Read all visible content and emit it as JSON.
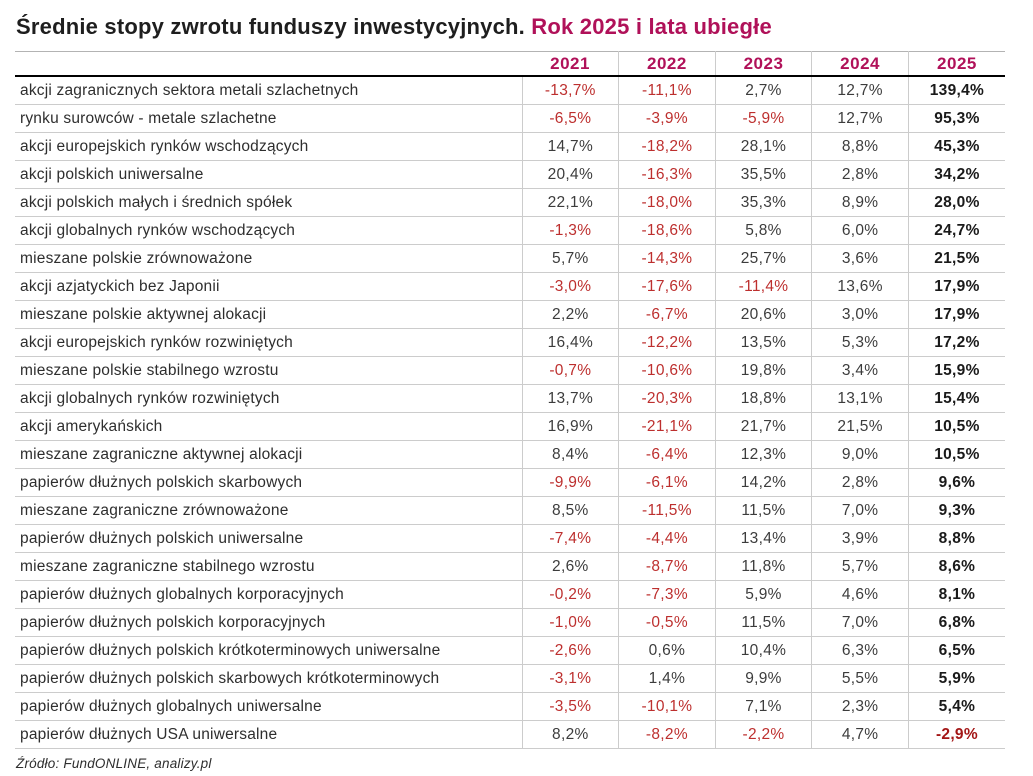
{
  "title": {
    "main": "Średnie stopy zwrotu funduszy inwestycyjnych.",
    "highlight": " Rok 2025 i lata ubiegłe"
  },
  "colors": {
    "accent_crimson": "#b01159",
    "negative_red": "#bd2f2e",
    "bold_negative_red": "#a31616",
    "text_dark": "#2e2e2e",
    "gridline_gray": "#cccccc"
  },
  "chart_data": {
    "type": "table",
    "title": "Średnie stopy zwrotu funduszy inwestycyjnych. Rok 2025 i lata ubiegłe",
    "columns": [
      "2021",
      "2022",
      "2023",
      "2024",
      "2025"
    ],
    "rows": [
      {
        "label": "akcji zagranicznych sektora metali szlachetnych",
        "values": [
          "-13,7%",
          "-11,1%",
          "2,7%",
          "12,7%",
          "139,4%"
        ]
      },
      {
        "label": "rynku surowców - metale szlachetne",
        "values": [
          "-6,5%",
          "-3,9%",
          "-5,9%",
          "12,7%",
          "95,3%"
        ]
      },
      {
        "label": "akcji europejskich rynków wschodzących",
        "values": [
          "14,7%",
          "-18,2%",
          "28,1%",
          "8,8%",
          "45,3%"
        ]
      },
      {
        "label": "akcji polskich uniwersalne",
        "values": [
          "20,4%",
          "-16,3%",
          "35,5%",
          "2,8%",
          "34,2%"
        ]
      },
      {
        "label": "akcji polskich małych i średnich spółek",
        "values": [
          "22,1%",
          "-18,0%",
          "35,3%",
          "8,9%",
          "28,0%"
        ]
      },
      {
        "label": "akcji globalnych rynków wschodzących",
        "values": [
          "-1,3%",
          "-18,6%",
          "5,8%",
          "6,0%",
          "24,7%"
        ]
      },
      {
        "label": "mieszane polskie zrównoważone",
        "values": [
          "5,7%",
          "-14,3%",
          "25,7%",
          "3,6%",
          "21,5%"
        ]
      },
      {
        "label": "akcji azjatyckich bez Japonii",
        "values": [
          "-3,0%",
          "-17,6%",
          "-11,4%",
          "13,6%",
          "17,9%"
        ]
      },
      {
        "label": "mieszane polskie aktywnej alokacji",
        "values": [
          "2,2%",
          "-6,7%",
          "20,6%",
          "3,0%",
          "17,9%"
        ]
      },
      {
        "label": "akcji europejskich rynków rozwiniętych",
        "values": [
          "16,4%",
          "-12,2%",
          "13,5%",
          "5,3%",
          "17,2%"
        ]
      },
      {
        "label": "mieszane polskie stabilnego wzrostu",
        "values": [
          "-0,7%",
          "-10,6%",
          "19,8%",
          "3,4%",
          "15,9%"
        ]
      },
      {
        "label": "akcji globalnych rynków rozwiniętych",
        "values": [
          "13,7%",
          "-20,3%",
          "18,8%",
          "13,1%",
          "15,4%"
        ]
      },
      {
        "label": "akcji amerykańskich",
        "values": [
          "16,9%",
          "-21,1%",
          "21,7%",
          "21,5%",
          "10,5%"
        ]
      },
      {
        "label": "mieszane zagraniczne aktywnej alokacji",
        "values": [
          "8,4%",
          "-6,4%",
          "12,3%",
          "9,0%",
          "10,5%"
        ]
      },
      {
        "label": "papierów dłużnych polskich skarbowych",
        "values": [
          "-9,9%",
          "-6,1%",
          "14,2%",
          "2,8%",
          "9,6%"
        ]
      },
      {
        "label": "mieszane zagraniczne zrównoważone",
        "values": [
          "8,5%",
          "-11,5%",
          "11,5%",
          "7,0%",
          "9,3%"
        ]
      },
      {
        "label": "papierów dłużnych polskich uniwersalne",
        "values": [
          "-7,4%",
          "-4,4%",
          "13,4%",
          "3,9%",
          "8,8%"
        ]
      },
      {
        "label": "mieszane zagraniczne stabilnego wzrostu",
        "values": [
          "2,6%",
          "-8,7%",
          "11,8%",
          "5,7%",
          "8,6%"
        ]
      },
      {
        "label": "papierów dłużnych globalnych korporacyjnych",
        "values": [
          "-0,2%",
          "-7,3%",
          "5,9%",
          "4,6%",
          "8,1%"
        ]
      },
      {
        "label": "papierów dłużnych polskich korporacyjnych",
        "values": [
          "-1,0%",
          "-0,5%",
          "11,5%",
          "7,0%",
          "6,8%"
        ]
      },
      {
        "label": "papierów dłużnych polskich krótkoterminowych uniwersalne",
        "values": [
          "-2,6%",
          "0,6%",
          "10,4%",
          "6,3%",
          "6,5%"
        ]
      },
      {
        "label": "papierów dłużnych polskich skarbowych krótkoterminowych",
        "values": [
          "-3,1%",
          "1,4%",
          "9,9%",
          "5,5%",
          "5,9%"
        ]
      },
      {
        "label": "papierów dłużnych globalnych uniwersalne",
        "values": [
          "-3,5%",
          "-10,1%",
          "7,1%",
          "2,3%",
          "5,4%"
        ]
      },
      {
        "label": "papierów dłużnych USA uniwersalne",
        "values": [
          "8,2%",
          "-8,2%",
          "-2,2%",
          "4,7%",
          "-2,9%"
        ]
      }
    ]
  },
  "footer": {
    "source": "Źródło: FundONLINE, analizy.pl"
  }
}
